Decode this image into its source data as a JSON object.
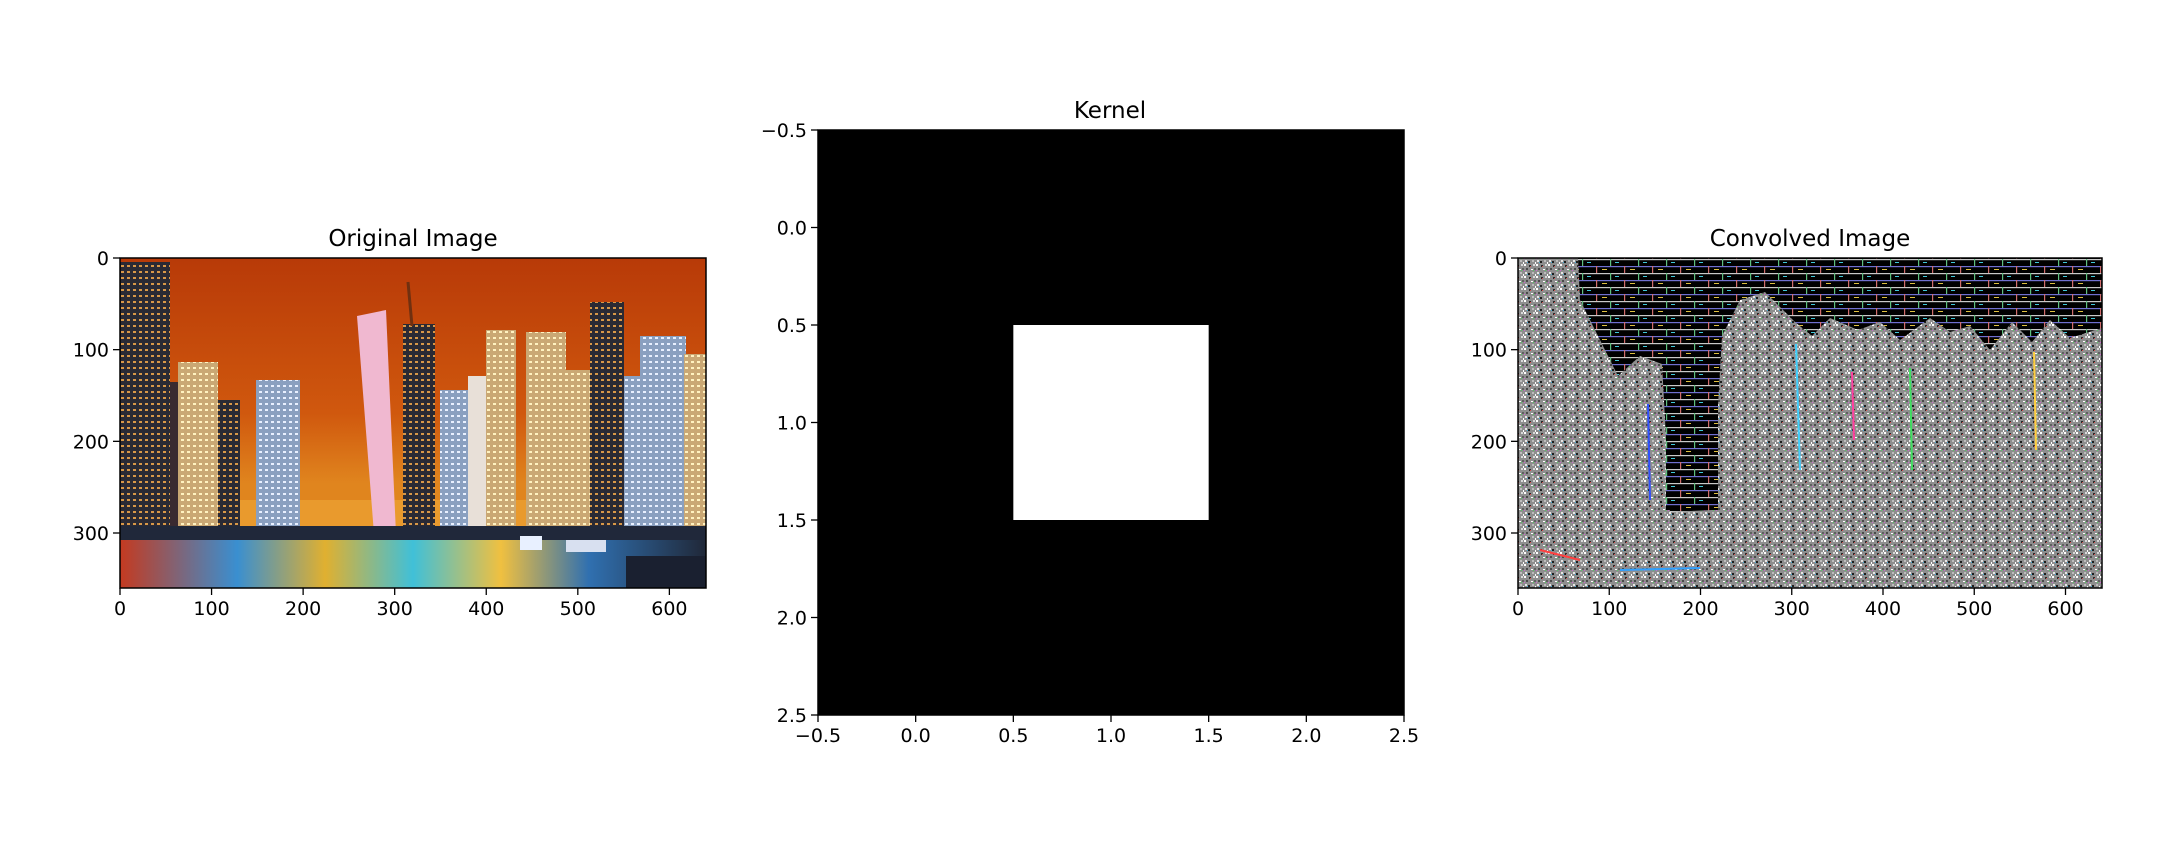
{
  "chart_data": [
    {
      "type": "image",
      "title": "Original Image",
      "xlim": [
        0,
        640
      ],
      "ylim": [
        360,
        0
      ],
      "xticks": [
        0,
        100,
        200,
        300,
        400,
        500,
        600
      ],
      "yticks": [
        0,
        100,
        200,
        300
      ],
      "xtick_labels": [
        "0",
        "100",
        "200",
        "300",
        "400",
        "500",
        "600"
      ],
      "ytick_labels": [
        "0",
        "100",
        "200",
        "300"
      ],
      "content": "night city skyline with waterfront reflections"
    },
    {
      "type": "heatmap",
      "title": "Kernel",
      "xlim": [
        -0.5,
        2.5
      ],
      "ylim": [
        2.5,
        -0.5
      ],
      "xticks": [
        -0.5,
        0.0,
        0.5,
        1.0,
        1.5,
        2.0,
        2.5
      ],
      "yticks": [
        -0.5,
        0.0,
        0.5,
        1.0,
        1.5,
        2.0,
        2.5
      ],
      "xtick_labels": [
        "−0.5",
        "0.0",
        "0.5",
        "1.0",
        "1.5",
        "2.0",
        "2.5"
      ],
      "ytick_labels": [
        "−0.5",
        "0.0",
        "0.5",
        "1.0",
        "1.5",
        "2.0",
        "2.5"
      ],
      "values": [
        [
          0,
          0,
          0
        ],
        [
          0,
          1,
          0
        ],
        [
          0,
          0,
          0
        ]
      ],
      "colormap": "gray"
    },
    {
      "type": "image",
      "title": "Convolved Image",
      "xlim": [
        0,
        640
      ],
      "ylim": [
        360,
        0
      ],
      "xticks": [
        0,
        100,
        200,
        300,
        400,
        500,
        600
      ],
      "yticks": [
        0,
        100,
        200,
        300
      ],
      "xtick_labels": [
        "0",
        "100",
        "200",
        "300",
        "400",
        "500",
        "600"
      ],
      "ytick_labels": [
        "0",
        "100",
        "200",
        "300"
      ],
      "content": "noisy multicolored convolution output"
    }
  ]
}
